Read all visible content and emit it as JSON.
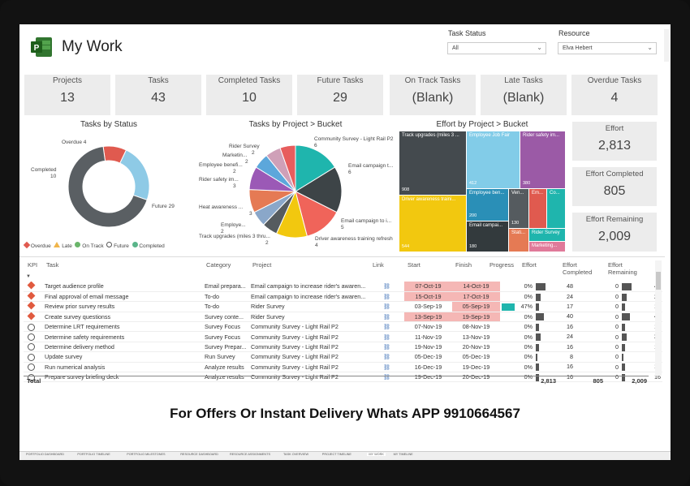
{
  "header": {
    "title": "My Work"
  },
  "filters": {
    "task_status_label": "Task Status",
    "task_status_value": "All",
    "resource_label": "Resource",
    "resource_value": "Elva Hebert"
  },
  "kpis": [
    {
      "label": "Projects",
      "value": "13"
    },
    {
      "label": "Tasks",
      "value": "43"
    },
    {
      "label": "Completed Tasks",
      "value": "10"
    },
    {
      "label": "Future Tasks",
      "value": "29"
    },
    {
      "label": "On Track Tasks",
      "value": "(Blank)"
    },
    {
      "label": "Late Tasks",
      "value": "(Blank)"
    },
    {
      "label": "Overdue Tasks",
      "value": "4"
    }
  ],
  "right_kpis": [
    {
      "label": "Effort",
      "value": "2,813"
    },
    {
      "label": "Effort Completed",
      "value": "805"
    },
    {
      "label": "Effort Remaining",
      "value": "2,009"
    }
  ],
  "chart_data": [
    {
      "type": "pie",
      "title": "Tasks by Status",
      "variant": "donut",
      "slices": [
        {
          "label": "Overdue",
          "value": 4,
          "color": "#e05a4f"
        },
        {
          "label": "Completed",
          "value": 10,
          "color": "#8ecae6"
        },
        {
          "label": "Future",
          "value": 29,
          "color": "#5a5f63"
        }
      ],
      "legend": [
        "Overdue",
        "Late",
        "On Track",
        "Future",
        "Completed"
      ],
      "legend_colors": [
        "#e05a4f",
        "#f0b54b",
        "#6ab56a",
        "#ffffff",
        "#5ab58a"
      ],
      "legend_placement": "bottom"
    },
    {
      "type": "pie",
      "title": "Tasks by Project > Bucket",
      "slices": [
        {
          "label": "Community Survey - Light Rail P2",
          "value": 6,
          "color": "#1fb5ad"
        },
        {
          "label": "Email campaign t...",
          "value": 6,
          "color": "#3d4447"
        },
        {
          "label": "Email campaign to i...",
          "value": 5,
          "color": "#f0645a"
        },
        {
          "label": "Driver awareness training refresh",
          "value": 4,
          "color": "#f2c80f"
        },
        {
          "label": "Track upgrades (miles 3 thru...",
          "value": 2,
          "color": "#555b5f"
        },
        {
          "label": "Employe...",
          "value": 2,
          "color": "#8aa7c9"
        },
        {
          "label": "Heat awareness ...",
          "value": 3,
          "color": "#e57a54"
        },
        {
          "label": "Rider safety im...",
          "value": 3,
          "color": "#9b59b6"
        },
        {
          "label": "Employee benefi...",
          "value": 2,
          "color": "#5ca7db"
        },
        {
          "label": "Marketin...",
          "value": 2,
          "color": "#cfa0b8"
        },
        {
          "label": "Rider Survey",
          "value": 2,
          "color": "#e75d5d"
        }
      ],
      "labels": [
        "Community Survey - Light Rail P2",
        "6",
        "Email campaign t...",
        "6",
        "Email campaign to i...",
        "5",
        "Driver awareness training refresh",
        "4",
        "Track upgrades (miles 3 thru...",
        "2",
        "Employe...",
        "2",
        "Heat awareness ...",
        "3",
        "Rider safety im...",
        "3",
        "Employee benefi...",
        "2",
        "Marketin...",
        "2",
        "Rider Survey",
        "2"
      ]
    },
    {
      "type": "treemap",
      "title": "Effort by Project > Bucket",
      "cells": [
        {
          "label": "Track upgrades (miles 3 ...",
          "value": "908",
          "color": "#444a4e"
        },
        {
          "label": "Employee Job Fair",
          "value": "412",
          "color": "#82cce8"
        },
        {
          "label": "Rider safety im...",
          "value": "380",
          "color": "#9b5aa6"
        },
        {
          "label": "Driver awareness traini...",
          "value": "544",
          "color": "#f2c80f"
        },
        {
          "label": "Employee ben...",
          "value": "200",
          "color": "#2a8fb7"
        },
        {
          "label": "Ven...",
          "value": "130",
          "color": "#555b5f"
        },
        {
          "label": "Em...",
          "value": "",
          "color": "#e05a4f"
        },
        {
          "label": "Co...",
          "value": "",
          "color": "#1fb5ad"
        },
        {
          "label": "Email campai...",
          "value": "180",
          "color": "#333a3d"
        },
        {
          "label": "Stati...",
          "value": "",
          "color": "#e57a54"
        },
        {
          "label": "Rider Survey",
          "value": "",
          "color": "#1fb5ad"
        },
        {
          "label": "Marketing...",
          "value": "",
          "color": "#e07a9a"
        }
      ]
    }
  ],
  "table": {
    "headers": {
      "kpi": "KPI",
      "task": "Task",
      "category": "Category",
      "project": "Project",
      "link": "Link",
      "start": "Start",
      "finish": "Finish",
      "progress": "Progress",
      "effort": "Effort",
      "effort_completed": "Effort Completed",
      "effort_remaining": "Effort Remaining"
    },
    "rows": [
      {
        "kpi": "overdue",
        "task": "Target audience profile",
        "category": "Email prepara...",
        "project": "Email campaign to increase rider's awaren...",
        "start": "07-Oct-19",
        "finish": "14-Oct-19",
        "progress": "0%",
        "progress_value": 0,
        "effort": "48",
        "effort_completed": "0",
        "effort_remaining": "48",
        "late": true
      },
      {
        "kpi": "overdue",
        "task": "Final approval of email message",
        "category": "To-do",
        "project": "Email campaign to increase rider's awaren...",
        "start": "15-Oct-19",
        "finish": "17-Oct-19",
        "progress": "0%",
        "progress_value": 0,
        "effort": "24",
        "effort_completed": "0",
        "effort_remaining": "24",
        "late": true
      },
      {
        "kpi": "overdue",
        "task": "Review prior survey results",
        "category": "To-do",
        "project": "Rider Survey",
        "start": "03-Sep-19",
        "finish": "05-Sep-19",
        "progress": "47%",
        "progress_value": 47,
        "effort": "17",
        "effort_completed": "0",
        "effort_remaining": "17",
        "late": true,
        "start_plain": true
      },
      {
        "kpi": "overdue",
        "task": "Create survey questionss",
        "category": "Survey conte...",
        "project": "Rider Survey",
        "start": "13-Sep-19",
        "finish": "19-Sep-19",
        "progress": "0%",
        "progress_value": 0,
        "effort": "40",
        "effort_completed": "0",
        "effort_remaining": "40",
        "late": true
      },
      {
        "kpi": "future",
        "task": "Determine LRT requirements",
        "category": "Survey Focus",
        "project": "Community Survey - Light Rail P2",
        "start": "07-Nov-19",
        "finish": "08-Nov-19",
        "progress": "0%",
        "progress_value": 0,
        "effort": "16",
        "effort_completed": "0",
        "effort_remaining": "16",
        "late": false
      },
      {
        "kpi": "future",
        "task": "Determine safety requirements",
        "category": "Survey Focus",
        "project": "Community Survey - Light Rail P2",
        "start": "11-Nov-19",
        "finish": "13-Nov-19",
        "progress": "0%",
        "progress_value": 0,
        "effort": "24",
        "effort_completed": "0",
        "effort_remaining": "24",
        "late": false
      },
      {
        "kpi": "future",
        "task": "Determine delivery method",
        "category": "Survey Prepar...",
        "project": "Community Survey - Light Rail P2",
        "start": "19-Nov-19",
        "finish": "20-Nov-19",
        "progress": "0%",
        "progress_value": 0,
        "effort": "16",
        "effort_completed": "0",
        "effort_remaining": "16",
        "late": false
      },
      {
        "kpi": "future",
        "task": "Update survey",
        "category": "Run Survey",
        "project": "Community Survey - Light Rail P2",
        "start": "05-Dec-19",
        "finish": "05-Dec-19",
        "progress": "0%",
        "progress_value": 0,
        "effort": "8",
        "effort_completed": "0",
        "effort_remaining": "8",
        "late": false
      },
      {
        "kpi": "future",
        "task": "Run numerical analysis",
        "category": "Analyze results",
        "project": "Community Survey - Light Rail P2",
        "start": "16-Dec-19",
        "finish": "19-Dec-19",
        "progress": "0%",
        "progress_value": 0,
        "effort": "16",
        "effort_completed": "0",
        "effort_remaining": "16",
        "late": false
      },
      {
        "kpi": "future",
        "task": "Prepare survey briefing deck",
        "category": "Analyze results",
        "project": "Community Survey - Light Rail P2",
        "start": "19-Dec-19",
        "finish": "20-Dec-19",
        "progress": "0%",
        "progress_value": 0,
        "effort": "16",
        "effort_completed": "0",
        "effort_remaining": "16",
        "late": false
      }
    ],
    "total": {
      "label": "Total",
      "effort": "2,813",
      "effort_completed": "805",
      "effort_remaining": "2,009"
    }
  },
  "promo": "For Offers Or Instant Delivery Whats APP 9910664567",
  "tabs": [
    "PORTFOLIO DASHBOARD",
    "PORTFOLIO TIMELINE",
    "PORTFOLIO MILESTONES",
    "RESOURCE DASHBOARD",
    "RESOURCE ASSIGNMENTS",
    "TASK OVERVIEW",
    "PROJECT TIMELINE",
    "MY WORK",
    "MY TIMELINE"
  ]
}
